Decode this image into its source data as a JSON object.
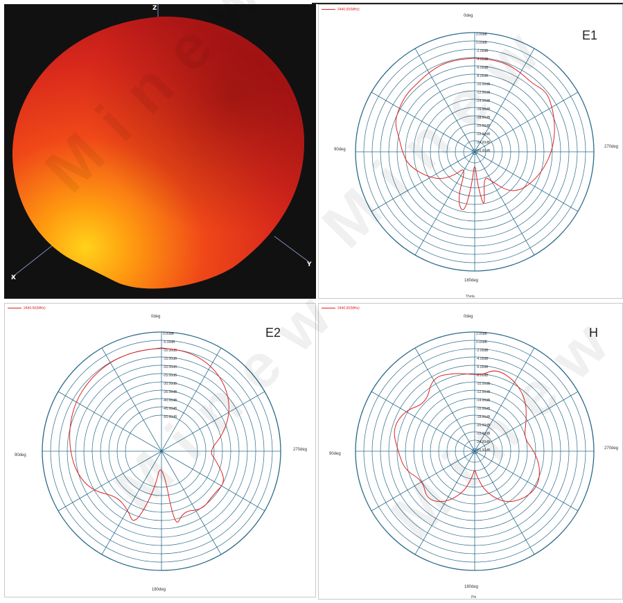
{
  "colors": {
    "trace": "#e02020",
    "grid": "#2a6a8a",
    "background_3d": "#111111"
  },
  "watermark": "Minew",
  "chart_data": [
    {
      "type": "3d-radiation-pattern",
      "axis_labels": [
        "X",
        "Y",
        "Z"
      ]
    },
    {
      "type": "polar",
      "label": "E1",
      "legend": "2440.00(MHz)",
      "angle_labels": {
        "top": "0deg",
        "left": "90deg",
        "right": "270deg",
        "bottom": "180deg"
      },
      "axis_title": "Theta",
      "rlim": [
        -26,
        2
      ],
      "ring_labels": [
        "2.00dB",
        "0.00dB",
        "-2.00dB",
        "-4.00dB",
        "-6.00dB",
        "-8.00dB",
        "-10.00dB",
        "-12.00dB",
        "-14.00dB",
        "-16.00dB",
        "-18.00dB",
        "-20.00dB",
        "-22.00dB",
        "-24.00dB",
        "-26.00dB"
      ],
      "series": [
        {
          "angles_deg": [
            0,
            10,
            20,
            30,
            40,
            50,
            60,
            70,
            80,
            90,
            100,
            110,
            120,
            130,
            140,
            150,
            160,
            170,
            175,
            180,
            185,
            190,
            200,
            210,
            220,
            230,
            240,
            250,
            260,
            270,
            280,
            290,
            300,
            310,
            320,
            330,
            340,
            350
          ],
          "gain_db": [
            -4,
            -4,
            -4,
            -4.5,
            -5,
            -5,
            -5.5,
            -6,
            -8,
            -9,
            -10,
            -12,
            -14,
            -16,
            -19,
            -22,
            -14,
            -11,
            -18,
            -24,
            -18,
            -12,
            -20,
            -18,
            -14,
            -12,
            -11,
            -10,
            -9,
            -8,
            -7,
            -6,
            -5,
            -4,
            -5,
            -4.5,
            -4,
            -4
          ]
        }
      ]
    },
    {
      "type": "polar",
      "label": "E2",
      "legend": "2440.00(MHz)",
      "angle_labels": {
        "top": "0deg",
        "left": "90deg",
        "right": "270deg",
        "bottom": "180deg"
      },
      "axis_title": "",
      "rlim": [
        -30,
        0
      ],
      "ring_labels": [
        "0.00dB",
        "-5.00dB",
        "-10.00dB",
        "-15.00dB",
        "-20.00dB",
        "-25.00dB",
        "-30.00dB",
        "-35.00dB",
        "-40.00dB",
        "-45.00dB",
        "-50.00dB"
      ],
      "series": [
        {
          "angles_deg": [
            0,
            15,
            30,
            45,
            60,
            75,
            90,
            105,
            120,
            135,
            150,
            160,
            170,
            180,
            190,
            200,
            215,
            230,
            245,
            260,
            270,
            285,
            300,
            315,
            330,
            345
          ],
          "gain_db": [
            -4,
            -4,
            -4,
            -4.5,
            -5,
            -6,
            -7,
            -8,
            -10,
            -14,
            -13,
            -10,
            -20,
            -28,
            -10,
            -14,
            -12,
            -13,
            -12,
            -16,
            -18,
            -14,
            -10,
            -7,
            -5,
            -4
          ]
        }
      ]
    },
    {
      "type": "polar",
      "label": "H",
      "legend": "2440.00(MHz)",
      "angle_labels": {
        "top": "0deg",
        "left": "90deg",
        "right": "270deg",
        "bottom": "180deg"
      },
      "axis_title": "Phi",
      "rlim": [
        -26,
        2
      ],
      "ring_labels": [
        "2.00dB",
        "0.00dB",
        "-2.00dB",
        "-4.00dB",
        "-6.00dB",
        "-8.00dB",
        "-10.00dB",
        "-12.00dB",
        "-14.00dB",
        "-16.00dB",
        "-18.00dB",
        "-20.00dB",
        "-22.00dB",
        "-24.00dB",
        "-26.00dB"
      ],
      "series": [
        {
          "angles_deg": [
            0,
            15,
            30,
            45,
            60,
            75,
            90,
            105,
            120,
            135,
            150,
            165,
            175,
            180,
            185,
            195,
            210,
            225,
            240,
            255,
            270,
            285,
            300,
            315,
            330,
            345,
            355
          ],
          "gain_db": [
            -8,
            -7,
            -6,
            -10,
            -7,
            -6,
            -8,
            -9,
            -12,
            -10,
            -12,
            -16,
            -20,
            -22,
            -20,
            -16,
            -12,
            -10,
            -9,
            -10,
            -12,
            -14,
            -12,
            -9,
            -7,
            -6,
            -8
          ]
        }
      ]
    }
  ]
}
